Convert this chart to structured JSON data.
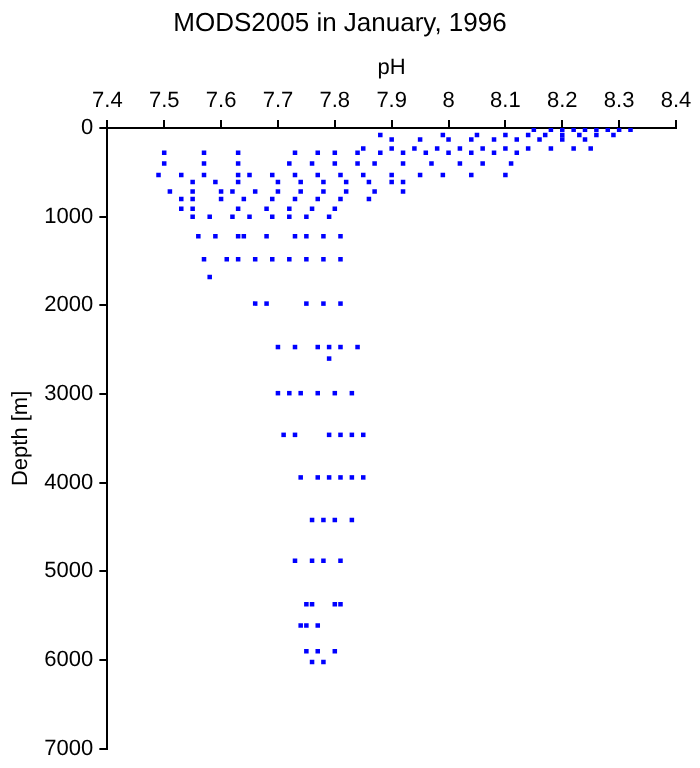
{
  "chart_data": {
    "type": "scatter",
    "title": "MODS2005 in January, 1996",
    "xlabel": "pH",
    "ylabel": "Depth [m]",
    "xlim": [
      7.4,
      8.4
    ],
    "xticks": [
      7.4,
      7.5,
      7.6,
      7.7,
      7.8,
      7.9,
      8,
      8.1,
      8.2,
      8.3,
      8.4
    ],
    "ylim": [
      7000,
      0
    ],
    "yticks": [
      0,
      1000,
      2000,
      3000,
      4000,
      5000,
      6000,
      7000
    ],
    "grid": false,
    "legend": false,
    "marker": "square",
    "series": [
      {
        "color": "#0000ff",
        "x": [
          8.15,
          8.18,
          8.2,
          8.22,
          8.24,
          8.26,
          8.28,
          8.3,
          8.32,
          7.88,
          7.99,
          8.05,
          8.1,
          8.14,
          8.17,
          8.2,
          8.23,
          8.26,
          8.29,
          7.9,
          7.95,
          8.0,
          8.04,
          8.08,
          8.12,
          8.16,
          8.2,
          8.24,
          7.85,
          7.9,
          7.94,
          7.98,
          8.02,
          8.06,
          8.1,
          8.14,
          8.18,
          8.22,
          8.25,
          7.5,
          7.57,
          7.63,
          7.73,
          7.77,
          7.8,
          7.84,
          7.88,
          7.92,
          7.96,
          8.0,
          8.04,
          8.08,
          8.12,
          7.5,
          7.57,
          7.63,
          7.72,
          7.76,
          7.8,
          7.84,
          7.87,
          7.92,
          7.97,
          8.02,
          8.06,
          8.11,
          7.49,
          7.53,
          7.57,
          7.63,
          7.65,
          7.69,
          7.73,
          7.77,
          7.81,
          7.85,
          7.9,
          7.95,
          7.99,
          8.04,
          8.1,
          7.55,
          7.59,
          7.63,
          7.7,
          7.74,
          7.78,
          7.82,
          7.86,
          7.9,
          7.92,
          7.51,
          7.55,
          7.6,
          7.62,
          7.66,
          7.7,
          7.74,
          7.78,
          7.82,
          7.87,
          7.92,
          7.53,
          7.55,
          7.6,
          7.64,
          7.69,
          7.73,
          7.77,
          7.81,
          7.86,
          7.53,
          7.55,
          7.63,
          7.68,
          7.72,
          7.76,
          7.8,
          7.55,
          7.58,
          7.62,
          7.65,
          7.69,
          7.72,
          7.75,
          7.79,
          7.56,
          7.59,
          7.63,
          7.64,
          7.68,
          7.73,
          7.75,
          7.78,
          7.81,
          7.57,
          7.61,
          7.63,
          7.66,
          7.69,
          7.72,
          7.75,
          7.78,
          7.81,
          7.58,
          7.66,
          7.68,
          7.75,
          7.78,
          7.81,
          7.7,
          7.73,
          7.77,
          7.79,
          7.81,
          7.84,
          7.79,
          7.7,
          7.72,
          7.74,
          7.77,
          7.8,
          7.83,
          7.71,
          7.73,
          7.79,
          7.81,
          7.83,
          7.85,
          7.74,
          7.77,
          7.79,
          7.81,
          7.83,
          7.85,
          7.76,
          7.78,
          7.8,
          7.83,
          7.73,
          7.76,
          7.78,
          7.81,
          7.75,
          7.76,
          7.8,
          7.81,
          7.74,
          7.75,
          7.77,
          7.75,
          7.77,
          7.8,
          7.76,
          7.78
        ],
        "values": [
          20,
          20,
          20,
          20,
          20,
          20,
          20,
          20,
          20,
          80,
          80,
          80,
          80,
          80,
          80,
          80,
          80,
          80,
          80,
          130,
          130,
          130,
          130,
          130,
          130,
          130,
          130,
          130,
          230,
          230,
          230,
          230,
          230,
          230,
          230,
          230,
          230,
          230,
          230,
          280,
          280,
          280,
          280,
          280,
          280,
          280,
          280,
          280,
          280,
          280,
          280,
          280,
          280,
          400,
          400,
          400,
          400,
          400,
          400,
          400,
          400,
          400,
          400,
          400,
          400,
          400,
          530,
          530,
          530,
          530,
          530,
          530,
          530,
          530,
          530,
          530,
          530,
          530,
          530,
          530,
          530,
          610,
          610,
          610,
          610,
          610,
          610,
          610,
          610,
          610,
          610,
          715,
          715,
          715,
          715,
          715,
          715,
          715,
          715,
          715,
          715,
          715,
          800,
          800,
          800,
          800,
          800,
          800,
          800,
          800,
          800,
          910,
          910,
          910,
          910,
          910,
          910,
          910,
          1000,
          1000,
          1000,
          1000,
          1000,
          1000,
          1000,
          1000,
          1220,
          1220,
          1220,
          1220,
          1220,
          1220,
          1220,
          1220,
          1220,
          1480,
          1480,
          1480,
          1480,
          1480,
          1480,
          1480,
          1480,
          1480,
          1680,
          1980,
          1980,
          1980,
          1980,
          1980,
          2470,
          2470,
          2470,
          2470,
          2470,
          2470,
          2600,
          2990,
          2990,
          2990,
          2990,
          2990,
          2990,
          3460,
          3460,
          3460,
          3460,
          3460,
          3460,
          3940,
          3940,
          3940,
          3940,
          3940,
          3940,
          4420,
          4420,
          4420,
          4420,
          4880,
          4880,
          4880,
          4880,
          5370,
          5370,
          5370,
          5370,
          5610,
          5610,
          5610,
          5900,
          5900,
          5900,
          6020,
          6020
        ]
      }
    ]
  }
}
